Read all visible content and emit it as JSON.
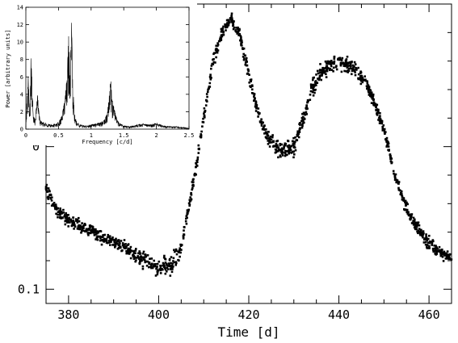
{
  "chart_data": [
    {
      "type": "scatter",
      "title": "",
      "xlabel": "Time [d]",
      "ylabel": "",
      "xlim": [
        375,
        465
      ],
      "ylim": [
        0.11,
        -0.1
      ],
      "y_axis_inverted": true,
      "x_ticks": [
        380,
        400,
        420,
        440,
        460
      ],
      "x_tick_labels": [
        "380",
        "400",
        "420",
        "440",
        "460"
      ],
      "y_ticks": [
        0,
        0.1
      ],
      "y_tick_labels": [
        "0",
        "0.1"
      ],
      "grid": false,
      "marker_color": "#000000",
      "series": [
        {
          "values": [
            {
              "x": 375,
              "y": 0.03
            },
            {
              "x": 378,
              "y": 0.047
            },
            {
              "x": 382,
              "y": 0.055
            },
            {
              "x": 387,
              "y": 0.063
            },
            {
              "x": 392,
              "y": 0.07
            },
            {
              "x": 396,
              "y": 0.078
            },
            {
              "x": 400,
              "y": 0.085
            },
            {
              "x": 403,
              "y": 0.082
            },
            {
              "x": 405,
              "y": 0.07
            },
            {
              "x": 408,
              "y": 0.02
            },
            {
              "x": 410,
              "y": -0.02
            },
            {
              "x": 412,
              "y": -0.058
            },
            {
              "x": 414,
              "y": -0.08
            },
            {
              "x": 416,
              "y": -0.09
            },
            {
              "x": 418,
              "y": -0.078
            },
            {
              "x": 420,
              "y": -0.05
            },
            {
              "x": 422,
              "y": -0.025
            },
            {
              "x": 424,
              "y": -0.008
            },
            {
              "x": 426,
              "y": 0.001
            },
            {
              "x": 428,
              "y": 0.003
            },
            {
              "x": 430,
              "y": 0.0
            },
            {
              "x": 432,
              "y": -0.018
            },
            {
              "x": 434,
              "y": -0.04
            },
            {
              "x": 436,
              "y": -0.052
            },
            {
              "x": 438,
              "y": -0.057
            },
            {
              "x": 440,
              "y": -0.06
            },
            {
              "x": 442,
              "y": -0.057
            },
            {
              "x": 444,
              "y": -0.053
            },
            {
              "x": 446,
              "y": -0.045
            },
            {
              "x": 448,
              "y": -0.03
            },
            {
              "x": 450,
              "y": -0.012
            },
            {
              "x": 452,
              "y": 0.015
            },
            {
              "x": 454,
              "y": 0.035
            },
            {
              "x": 456,
              "y": 0.05
            },
            {
              "x": 458,
              "y": 0.06
            },
            {
              "x": 460,
              "y": 0.068
            },
            {
              "x": 462,
              "y": 0.074
            },
            {
              "x": 465,
              "y": 0.078
            }
          ]
        }
      ]
    },
    {
      "type": "line",
      "title": "",
      "xlabel": "Frequency [c/d]",
      "ylabel": "Power [arbitrary units]",
      "xlim": [
        0,
        2.5
      ],
      "ylim": [
        0,
        14
      ],
      "x_ticks": [
        0,
        0.5,
        1,
        1.5,
        2,
        2.5
      ],
      "x_tick_labels": [
        "0",
        "0.5",
        "1",
        "1.5",
        "2",
        "2.5"
      ],
      "y_ticks": [
        0,
        2,
        4,
        6,
        8,
        10,
        12,
        14
      ],
      "y_tick_labels": [
        "0",
        "2",
        "4",
        "6",
        "8",
        "10",
        "12",
        "14"
      ],
      "grid": false,
      "series": [
        {
          "x": [
            0.0,
            0.02,
            0.04,
            0.05,
            0.06,
            0.08,
            0.1,
            0.12,
            0.14,
            0.16,
            0.18,
            0.2,
            0.22,
            0.25,
            0.3,
            0.35,
            0.4,
            0.45,
            0.5,
            0.55,
            0.6,
            0.63,
            0.66,
            0.68,
            0.7,
            0.72,
            0.74,
            0.76,
            0.78,
            0.8,
            0.85,
            0.9,
            0.95,
            1.0,
            1.05,
            1.1,
            1.15,
            1.2,
            1.25,
            1.28,
            1.3,
            1.32,
            1.35,
            1.4,
            1.45,
            1.5,
            1.6,
            1.7,
            1.8,
            1.9,
            2.0,
            2.1,
            2.2,
            2.3,
            2.4,
            2.5
          ],
          "y": [
            0.5,
            4.0,
            6.5,
            3.0,
            1.5,
            9.0,
            4.0,
            1.8,
            1.0,
            2.5,
            4.0,
            2.0,
            1.0,
            0.8,
            0.7,
            0.6,
            0.5,
            0.6,
            0.8,
            1.5,
            3.5,
            6.0,
            11.5,
            7.0,
            12.5,
            6.0,
            2.0,
            1.2,
            0.9,
            0.6,
            0.5,
            0.4,
            0.4,
            0.5,
            0.6,
            0.7,
            0.8,
            1.0,
            2.0,
            4.0,
            5.8,
            3.5,
            2.5,
            1.0,
            0.6,
            0.4,
            0.3,
            0.5,
            0.6,
            0.5,
            0.7,
            0.4,
            0.3,
            0.3,
            0.2,
            0.1
          ]
        }
      ]
    }
  ]
}
